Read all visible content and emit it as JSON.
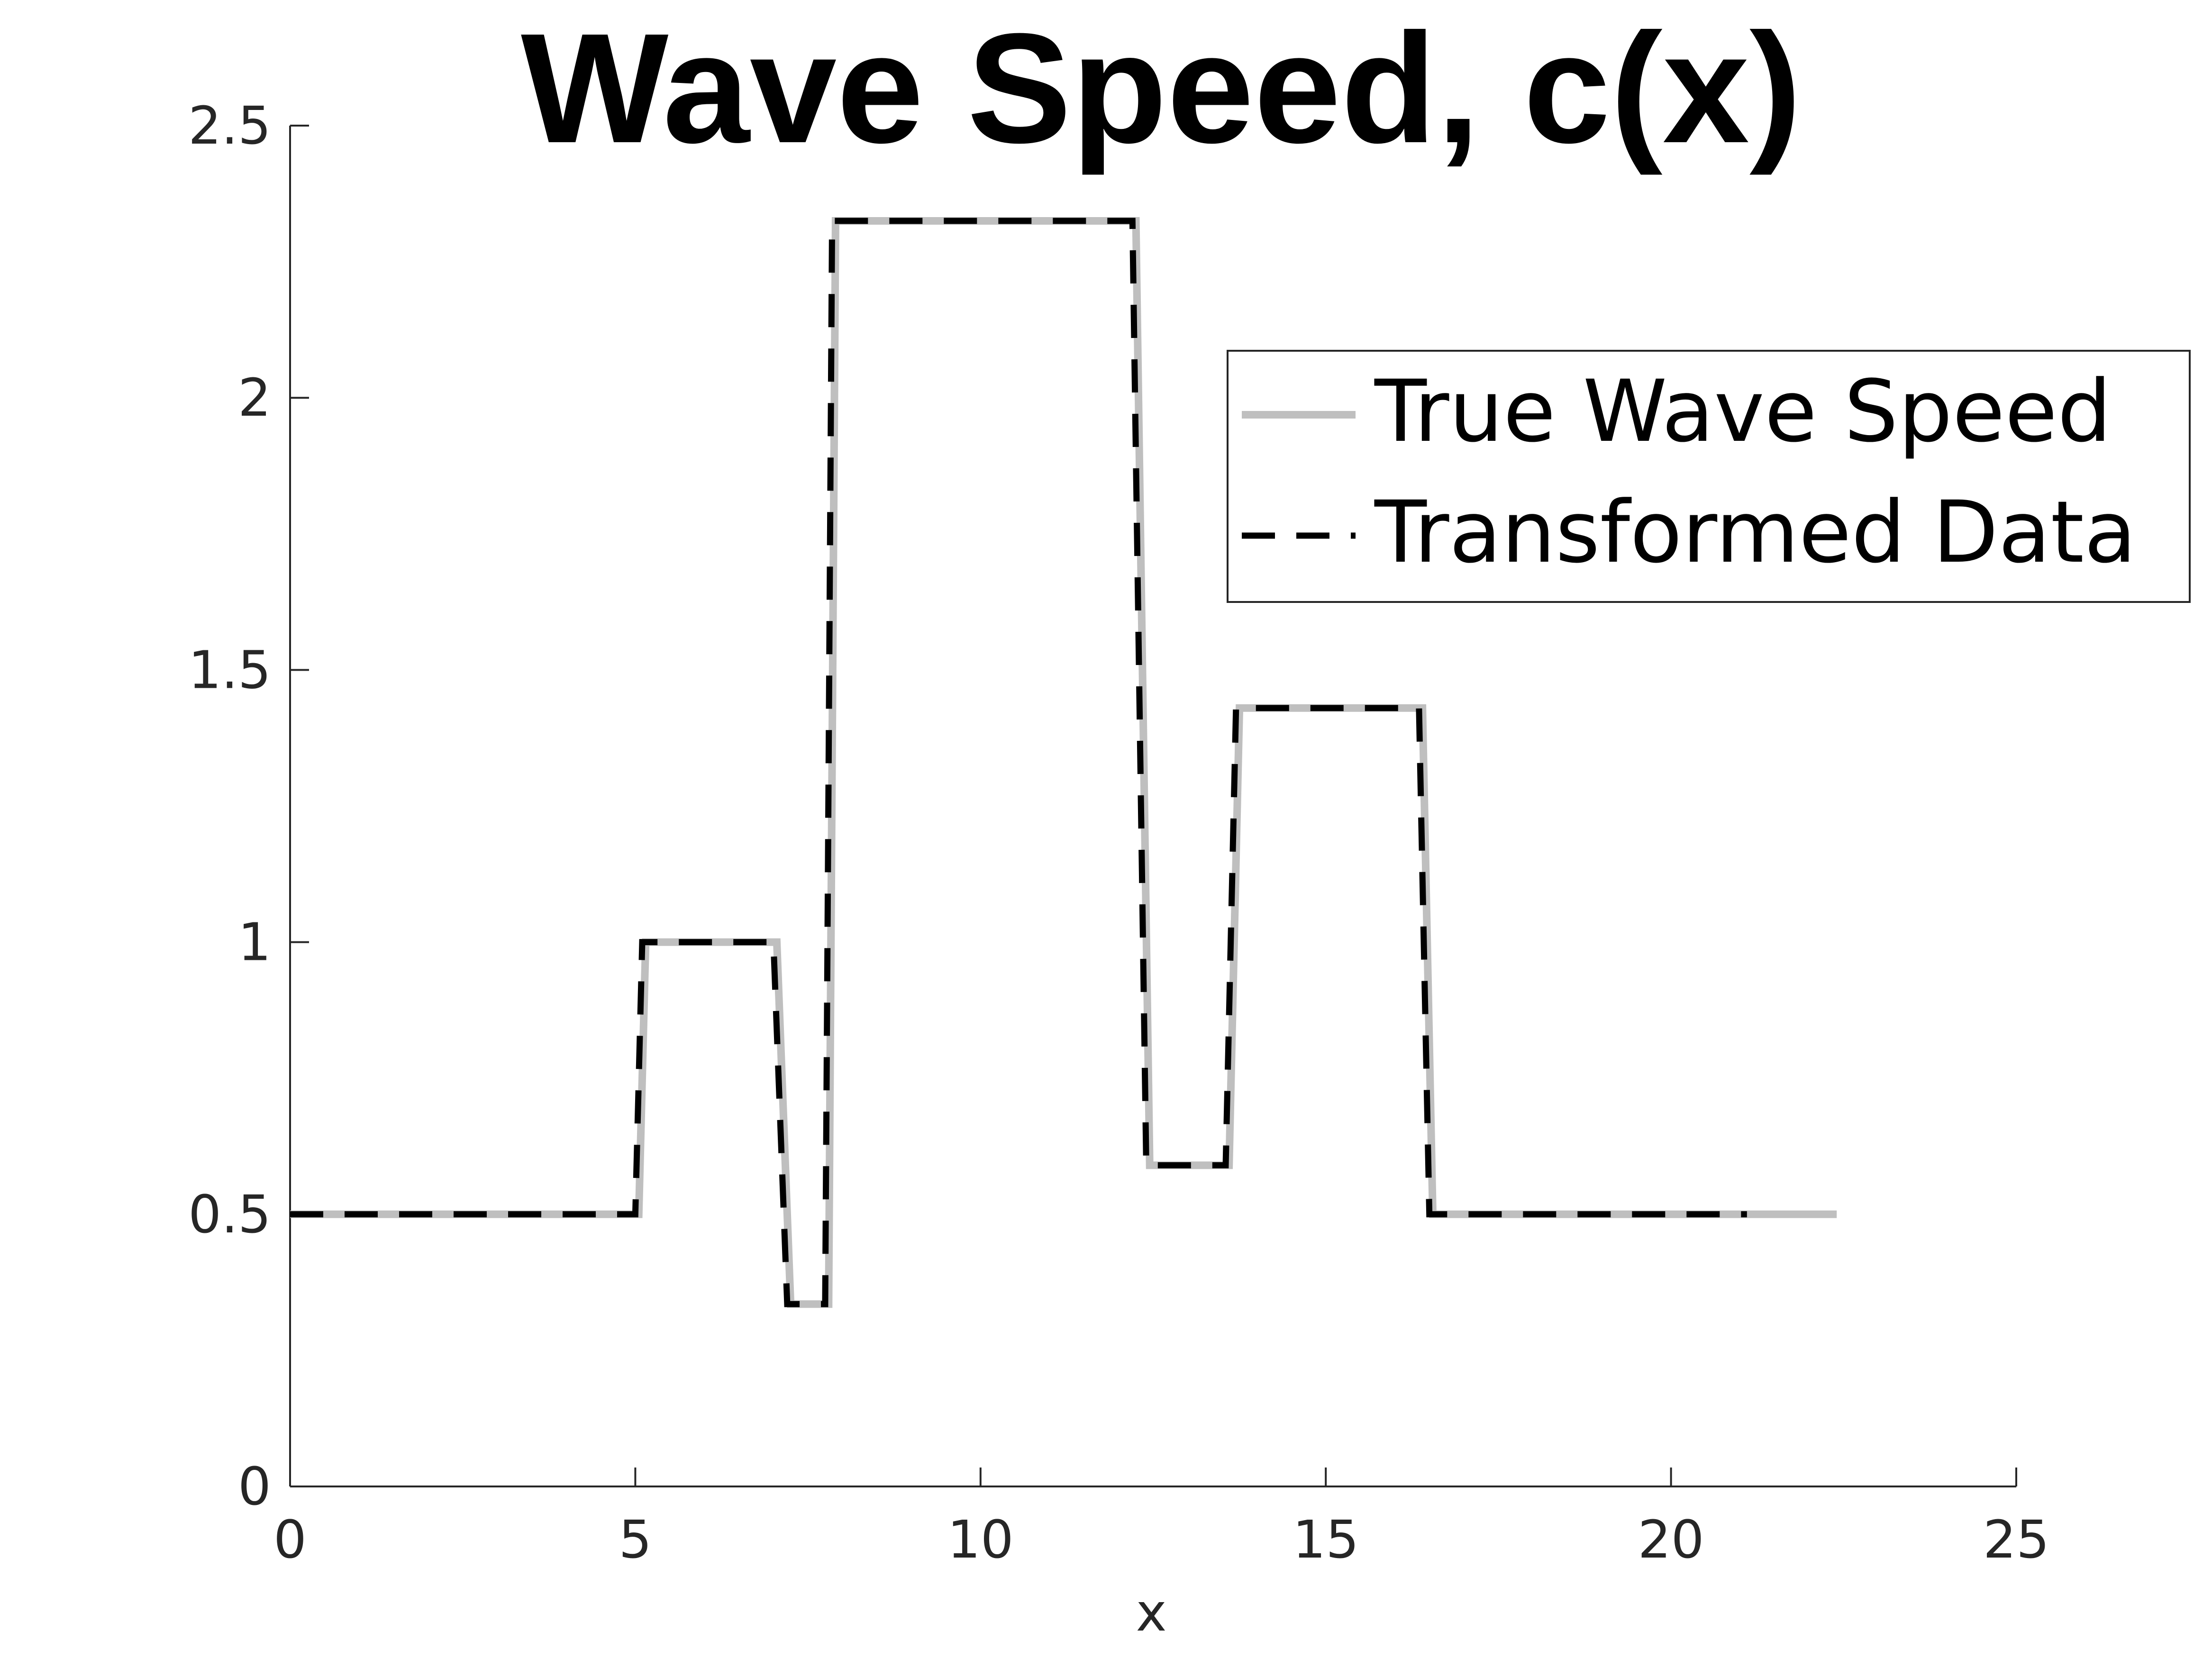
{
  "chart_data": {
    "type": "line",
    "title": "Wave Speed, c(x)",
    "xlabel": "x",
    "ylabel": "",
    "xlim": [
      0,
      25
    ],
    "ylim": [
      0,
      2.5
    ],
    "xticks": [
      "0",
      "5",
      "10",
      "15",
      "20",
      "25"
    ],
    "yticks": [
      "0",
      "0.5",
      "1",
      "1.5",
      "2",
      "2.5"
    ],
    "grid": false,
    "legend_position": "top-right",
    "series": [
      {
        "name": "True Wave Speed",
        "color": "#bfbfbf",
        "style": "solid",
        "x": [
          0,
          5.05,
          5.15,
          7.05,
          7.25,
          7.8,
          7.9,
          12.25,
          12.45,
          13.6,
          13.75,
          16.4,
          16.55,
          22.4
        ],
        "y": [
          0.5,
          0.5,
          1.0,
          1.0,
          0.335,
          0.335,
          2.325,
          2.325,
          0.59,
          0.59,
          1.43,
          1.43,
          0.5,
          0.5
        ]
      },
      {
        "name": "Transformed Data",
        "color": "#000000",
        "style": "dashed",
        "x": [
          0,
          5.0,
          5.1,
          7.0,
          7.2,
          7.75,
          7.85,
          12.2,
          12.4,
          13.55,
          13.7,
          16.35,
          16.5,
          21.1
        ],
        "y": [
          0.5,
          0.5,
          1.0,
          1.0,
          0.335,
          0.335,
          2.325,
          2.325,
          0.59,
          0.59,
          1.43,
          1.43,
          0.5,
          0.5
        ]
      }
    ]
  }
}
